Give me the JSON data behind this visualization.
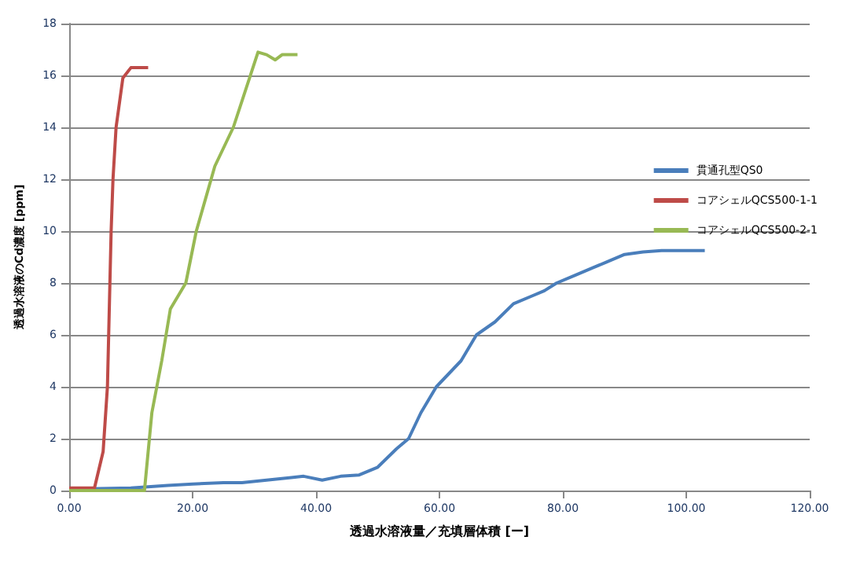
{
  "chart_data": {
    "type": "line",
    "xlabel": "透過水溶液量／充填層体積 [ー]",
    "ylabel": "透過水溶液のCd濃度 [ppm]",
    "xlim": [
      0,
      120
    ],
    "xticks": [
      {
        "value": 0,
        "label": "0.00"
      },
      {
        "value": 20,
        "label": "20.00"
      },
      {
        "value": 40,
        "label": "40.00"
      },
      {
        "value": 60,
        "label": "60.00"
      },
      {
        "value": 80,
        "label": "80.00"
      },
      {
        "value": 100,
        "label": "100.00"
      },
      {
        "value": 120,
        "label": "120.00"
      }
    ],
    "ylim": [
      0,
      18
    ],
    "yticks": [
      0,
      2,
      4,
      6,
      8,
      10,
      12,
      14,
      16,
      18
    ],
    "grid": "y",
    "legend": "right",
    "marker": "none",
    "line_style": "solid",
    "series": [
      {
        "name": "貫通孔型QS0",
        "color": "#4a7ebb",
        "x": [
          0,
          10,
          16,
          20,
          25,
          28,
          32,
          36,
          38,
          41,
          44,
          47,
          50,
          53,
          55,
          57,
          59.5,
          61.5,
          63.5,
          66,
          69,
          72,
          75,
          77,
          79,
          82,
          85,
          87,
          90,
          93,
          96,
          103
        ],
        "values": [
          0.05,
          0.1,
          0.2,
          0.25,
          0.3,
          0.3,
          0.4,
          0.5,
          0.55,
          0.4,
          0.55,
          0.6,
          0.9,
          1.6,
          2,
          3,
          4,
          4.5,
          5,
          6,
          6.5,
          7.2,
          7.5,
          7.7,
          8,
          8.3,
          8.6,
          8.8,
          9.1,
          9.2,
          9.25,
          9.25
        ]
      },
      {
        "name": "コアシェルQCS500-1-1",
        "color": "#be4b48",
        "x": [
          0,
          4.1,
          5.5,
          6.2,
          6.6,
          6.8,
          7.1,
          7.6,
          8.7,
          10,
          12.8
        ],
        "values": [
          0.1,
          0.1,
          1.5,
          4,
          8,
          10,
          12,
          14,
          15.9,
          16.3,
          16.3
        ]
      },
      {
        "name": "コアシェルQCS500-2-1",
        "color": "#98b954",
        "x": [
          0,
          12.2,
          13.4,
          15,
          16.4,
          18.9,
          20.6,
          23.6,
          26.6,
          30.6,
          32,
          33.4,
          34.5,
          37
        ],
        "values": [
          0,
          0,
          3,
          5,
          7,
          8,
          10,
          12.5,
          14,
          16.9,
          16.8,
          16.6,
          16.8,
          16.8
        ]
      }
    ]
  }
}
